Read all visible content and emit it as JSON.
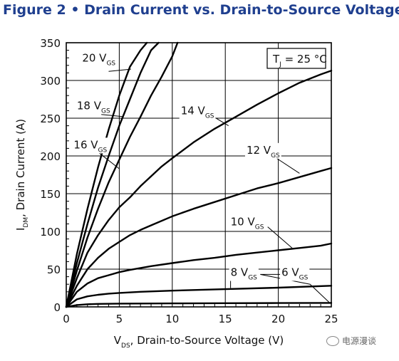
{
  "figure_title": "Figure 2 • Drain Current vs. Drain-to-Source Voltage",
  "watermark": "电源漫谈",
  "chart_data": {
    "type": "line",
    "xlabel": {
      "main": "V",
      "sub": "DS",
      "rest": ", Drain-to-Source Voltage (V)"
    },
    "ylabel": {
      "main": "I",
      "sub": "DM",
      "rest": ", Drain Current (A)"
    },
    "xlim": [
      0,
      25
    ],
    "ylim": [
      0,
      350
    ],
    "xticks": [
      0,
      5,
      10,
      15,
      20,
      25
    ],
    "yticks": [
      0,
      50,
      100,
      150,
      200,
      250,
      300,
      350
    ],
    "grid": true,
    "annotation": {
      "main": "T",
      "sub": "J",
      "rest": " = 25 °C"
    },
    "series": [
      {
        "name": "20 V",
        "sub": "GS",
        "x": [
          0,
          1,
          2,
          3,
          4,
          5,
          6,
          7,
          7.6
        ],
        "y": [
          0,
          70,
          130,
          185,
          235,
          280,
          318,
          340,
          350
        ]
      },
      {
        "name": "18 V",
        "sub": "GS",
        "x": [
          0,
          1,
          2,
          3,
          4,
          5,
          6,
          7,
          8,
          8.7
        ],
        "y": [
          0,
          58,
          110,
          158,
          200,
          240,
          275,
          310,
          340,
          350
        ]
      },
      {
        "name": "16 V",
        "sub": "GS",
        "x": [
          0,
          1,
          2,
          3,
          4,
          5,
          6,
          7,
          8,
          9,
          10,
          10.5
        ],
        "y": [
          0,
          48,
          92,
          130,
          165,
          195,
          225,
          252,
          280,
          305,
          332,
          350
        ]
      },
      {
        "name": "14 V",
        "sub": "GS",
        "x": [
          0,
          1,
          2,
          3,
          4,
          5,
          6,
          7,
          8,
          9,
          10,
          12,
          14,
          16,
          18,
          20,
          22,
          24,
          25
        ],
        "y": [
          0,
          38,
          72,
          95,
          115,
          132,
          145,
          160,
          173,
          186,
          197,
          218,
          236,
          252,
          268,
          283,
          297,
          308,
          313
        ]
      },
      {
        "name": "12 V",
        "sub": "GS",
        "x": [
          0,
          1,
          2,
          3,
          4,
          5,
          6,
          7,
          8,
          10,
          12,
          14,
          16,
          18,
          20,
          22,
          24,
          25
        ],
        "y": [
          0,
          28,
          50,
          65,
          77,
          86,
          95,
          102,
          108,
          120,
          130,
          139,
          148,
          157,
          164,
          172,
          180,
          184
        ]
      },
      {
        "name": "10 V",
        "sub": "GS",
        "x": [
          0,
          1,
          2,
          3,
          4,
          5,
          6,
          8,
          10,
          12,
          14,
          16,
          18,
          20,
          22,
          24,
          25
        ],
        "y": [
          0,
          20,
          31,
          38,
          42,
          46,
          49,
          54,
          58,
          62,
          65,
          69,
          72,
          75,
          78,
          81,
          84
        ]
      },
      {
        "name": "8 V",
        "sub": "GS",
        "x": [
          0,
          1,
          2,
          3,
          4,
          5,
          7,
          10,
          15,
          20,
          25
        ],
        "y": [
          0,
          10,
          14,
          16,
          17.5,
          18.5,
          20,
          21.5,
          23.5,
          25.5,
          28
        ]
      },
      {
        "name": "6 V",
        "sub": "GS",
        "x": [
          0,
          1,
          2,
          3,
          5,
          10,
          15,
          20,
          25
        ],
        "y": [
          0,
          2.5,
          3.5,
          4,
          4.3,
          4.6,
          4.9,
          5.1,
          5.3
        ]
      }
    ],
    "curve_labels": [
      {
        "text": "20 V",
        "sub": "GS",
        "pos": [
          1.5,
          325
        ],
        "pointer": [
          [
            4.0,
            312
          ],
          [
            6.1,
            315
          ]
        ]
      },
      {
        "text": "18 V",
        "sub": "GS",
        "pos": [
          1.0,
          262
        ],
        "pointer": [
          [
            3.3,
            255
          ],
          [
            5.4,
            252
          ]
        ]
      },
      {
        "text": "16 V",
        "sub": "GS",
        "pos": [
          0.7,
          210
        ],
        "pointer": [
          [
            3.1,
            204
          ],
          [
            5.0,
            183
          ]
        ]
      },
      {
        "text": "14 V",
        "sub": "GS",
        "pos": [
          10.8,
          255
        ],
        "pointer": [
          [
            13.9,
            252
          ],
          [
            15.3,
            240
          ]
        ]
      },
      {
        "text": "12 V",
        "sub": "GS",
        "pos": [
          17.0,
          203
        ],
        "pointer": [
          [
            19.5,
            200
          ],
          [
            22.0,
            177
          ]
        ]
      },
      {
        "text": "10 V",
        "sub": "GS",
        "pos": [
          15.5,
          108
        ],
        "pointer": [
          [
            19.0,
            106
          ],
          [
            21.3,
            78
          ]
        ]
      },
      {
        "text": "8 V",
        "sub": "GS",
        "pos": [
          15.5,
          41
        ],
        "pointer": [
          [
            15.5,
            43
          ],
          [
            15.5,
            25
          ]
        ]
      },
      {
        "text": "6 V",
        "sub": "GS",
        "pos": [
          20.3,
          41
        ],
        "pointer": [
          [
            20.2,
            43
          ],
          [
            18.3,
            43
          ],
          [
            23.0,
            30
          ],
          [
            24.8,
            6
          ]
        ]
      }
    ]
  }
}
